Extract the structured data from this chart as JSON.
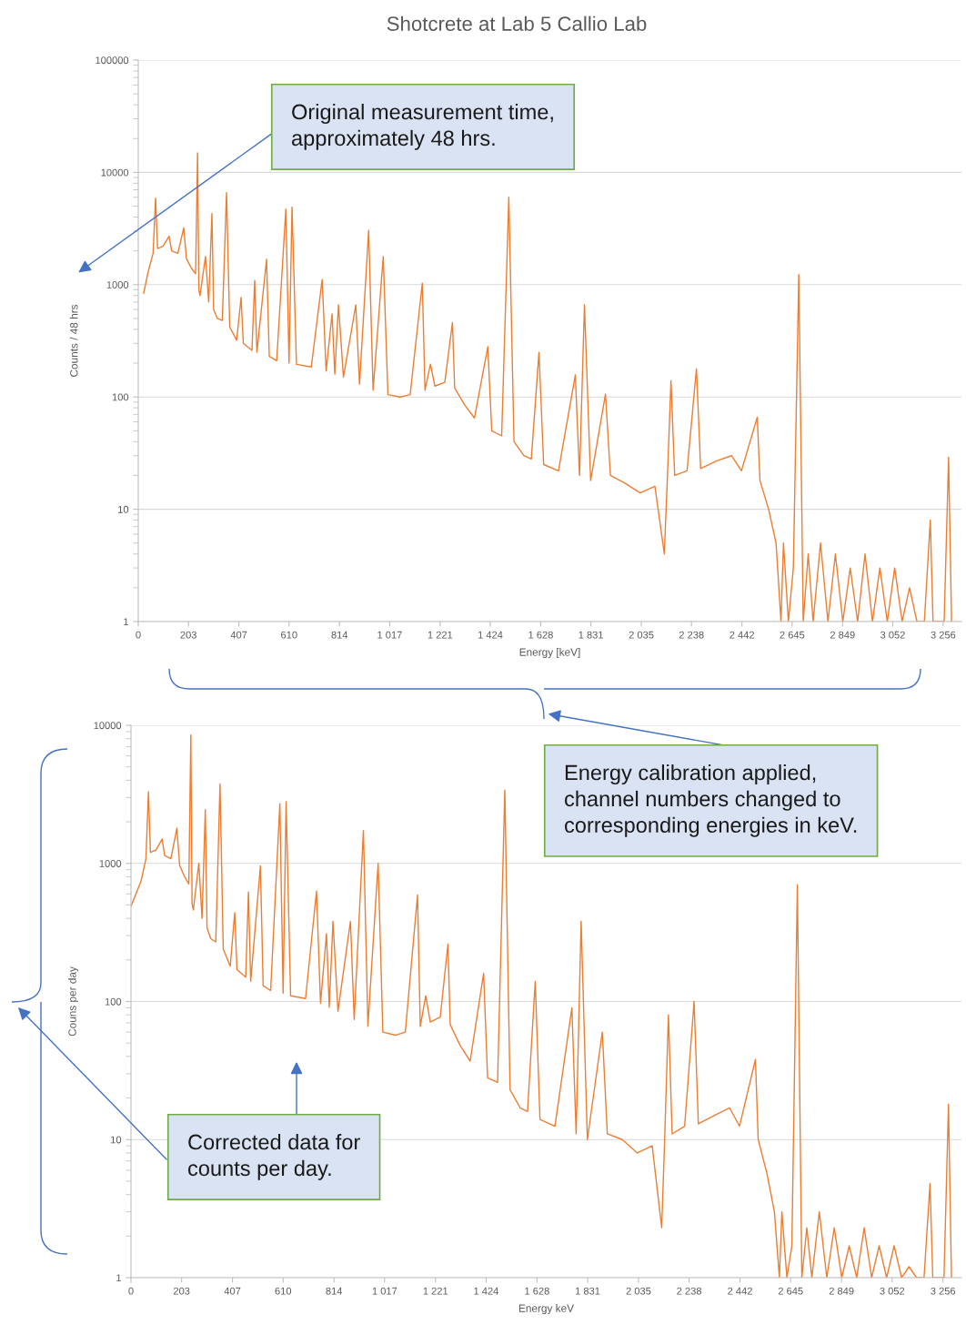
{
  "chart_data": [
    {
      "type": "line",
      "title": "Shotcrete at Lab 5 Callio Lab",
      "xlabel": "Energy [keV]",
      "ylabel": "Counts / 48 hrs",
      "log": "y",
      "grid": "y",
      "xlim": [
        0,
        3330
      ],
      "ylim": [
        1,
        100000
      ],
      "xticks": [
        0,
        203,
        407,
        610,
        814,
        {
          "value": 1017,
          "label": "1 017"
        },
        {
          "value": 1221,
          "label": "1 221"
        },
        {
          "value": 1424,
          "label": "1 424"
        },
        {
          "value": 1628,
          "label": "1 628"
        },
        {
          "value": 1831,
          "label": "1 831"
        },
        {
          "value": 2035,
          "label": "2 035"
        },
        {
          "value": 2238,
          "label": "2 238"
        },
        {
          "value": 2442,
          "label": "2 442"
        },
        {
          "value": 2645,
          "label": "2 645"
        },
        {
          "value": 2849,
          "label": "2 849"
        },
        {
          "value": 3052,
          "label": "3 052"
        },
        {
          "value": 3256,
          "label": "3 256"
        }
      ],
      "yticks": [
        1,
        10,
        100,
        1000,
        10000,
        100000
      ],
      "annotations": [
        "Original measurement time, approximately 48 hrs."
      ],
      "series": [
        {
          "color": "#ed7d31",
          "x": [
            22,
            40,
            60,
            70,
            78,
            100,
            125,
            135,
            160,
            184,
            195,
            215,
            232,
            240,
            245,
            250,
            272,
            285,
            298,
            305,
            320,
            340,
            357,
            370,
            398,
            416,
            425,
            460,
            471,
            480,
            519,
            530,
            560,
            597,
            610,
            622,
            640,
            700,
            744,
            760,
            784,
            795,
            810,
            830,
            880,
            895,
            932,
            950,
            991,
            1010,
            1060,
            1100,
            1149,
            1160,
            1182,
            1200,
            1240,
            1271,
            1280,
            1320,
            1360,
            1414,
            1430,
            1470,
            1499,
            1520,
            1560,
            1590,
            1621,
            1640,
            1700,
            1768,
            1785,
            1805,
            1830,
            1890,
            1910,
            1970,
            2030,
            2090,
            2128,
            2140,
            2155,
            2170,
            2220,
            2258,
            2275,
            2340,
            2400,
            2440,
            2504,
            2515,
            2550,
            2580,
            2600,
            2610,
            2630,
            2650,
            2672,
            2690,
            2710,
            2730,
            2760,
            2790,
            2820,
            2850,
            2880,
            2910,
            2940,
            2970,
            3000,
            3030,
            3060,
            3090,
            3120,
            3150,
            3180,
            3204,
            3215,
            3260,
            3278,
            3290
          ],
          "values": [
            840,
            1300,
            1900,
            5900,
            2100,
            2200,
            2700,
            2000,
            1900,
            3200,
            1700,
            1400,
            1250,
            14900,
            900,
            800,
            1780,
            700,
            4300,
            600,
            500,
            480,
            6600,
            420,
            320,
            770,
            300,
            260,
            1090,
            250,
            1680,
            230,
            210,
            4700,
            200,
            4900,
            195,
            185,
            1110,
            170,
            550,
            160,
            660,
            150,
            660,
            130,
            3040,
            115,
            1780,
            105,
            100,
            105,
            1030,
            115,
            196,
            125,
            135,
            460,
            120,
            85,
            65,
            280,
            50,
            45,
            6000,
            40,
            30,
            28,
            250,
            25,
            22,
            157,
            20,
            660,
            18,
            106,
            20,
            17,
            14,
            16,
            4,
            18,
            140,
            20,
            22,
            178,
            23,
            27,
            30,
            22,
            66,
            18,
            10,
            5,
            1,
            5,
            1,
            3,
            1230,
            1,
            4,
            1,
            5,
            1,
            4,
            1,
            3,
            1,
            4,
            1,
            3,
            1,
            3,
            1,
            2,
            1,
            1,
            8,
            1,
            1,
            29,
            1
          ]
        }
      ]
    },
    {
      "type": "line",
      "xlabel": "Energy keV",
      "ylabel": "Couns per day",
      "log": "y",
      "grid": "y",
      "xlim": [
        0,
        3330
      ],
      "ylim": [
        1,
        10000
      ],
      "xticks": [
        0,
        203,
        407,
        610,
        814,
        {
          "value": 1017,
          "label": "1 017"
        },
        {
          "value": 1221,
          "label": "1 221"
        },
        {
          "value": 1424,
          "label": "1 424"
        },
        {
          "value": 1628,
          "label": "1 628"
        },
        {
          "value": 1831,
          "label": "1 831"
        },
        {
          "value": 2035,
          "label": "2 035"
        },
        {
          "value": 2238,
          "label": "2 238"
        },
        {
          "value": 2442,
          "label": "2 442"
        },
        {
          "value": 2645,
          "label": "2 645"
        },
        {
          "value": 2849,
          "label": "2 849"
        },
        {
          "value": 3052,
          "label": "3 052"
        },
        {
          "value": 3256,
          "label": "3 256"
        }
      ],
      "yticks": [
        1,
        10,
        100,
        1000,
        10000
      ],
      "annotations": [
        "Energy calibration applied, channel numbers changed to corresponding energies in keV.",
        "Corrected data for counts per day."
      ],
      "series": [
        {
          "color": "#ed7d31",
          "x": [
            0,
            40,
            60,
            70,
            78,
            100,
            125,
            135,
            160,
            184,
            195,
            215,
            232,
            240,
            245,
            250,
            272,
            285,
            298,
            305,
            320,
            340,
            357,
            370,
            398,
            416,
            425,
            460,
            471,
            480,
            519,
            530,
            560,
            597,
            610,
            622,
            640,
            700,
            744,
            760,
            784,
            795,
            810,
            830,
            880,
            895,
            932,
            950,
            991,
            1010,
            1060,
            1100,
            1149,
            1160,
            1182,
            1200,
            1240,
            1271,
            1280,
            1320,
            1360,
            1414,
            1430,
            1470,
            1499,
            1520,
            1560,
            1590,
            1621,
            1640,
            1700,
            1768,
            1785,
            1805,
            1830,
            1890,
            1910,
            1970,
            2030,
            2090,
            2128,
            2140,
            2155,
            2170,
            2220,
            2258,
            2275,
            2340,
            2400,
            2440,
            2504,
            2515,
            2550,
            2580,
            2600,
            2610,
            2630,
            2650,
            2672,
            2690,
            2710,
            2730,
            2760,
            2790,
            2820,
            2850,
            2880,
            2910,
            2940,
            2970,
            3000,
            3030,
            3060,
            3090,
            3120,
            3150,
            3180,
            3204,
            3215,
            3260,
            3278,
            3290
          ],
          "values": [
            490,
            740,
            1080,
            3300,
            1200,
            1250,
            1500,
            1140,
            1080,
            1800,
            970,
            800,
            710,
            8500,
            510,
            460,
            1000,
            400,
            2450,
            340,
            285,
            270,
            3760,
            240,
            180,
            440,
            170,
            150,
            620,
            140,
            960,
            130,
            120,
            2700,
            115,
            2800,
            110,
            105,
            630,
            97,
            310,
            91,
            380,
            85,
            380,
            74,
            1730,
            66,
            1000,
            60,
            57,
            60,
            590,
            66,
            110,
            71,
            77,
            260,
            68,
            48,
            37,
            160,
            28,
            26,
            3400,
            23,
            17,
            16,
            140,
            14,
            12.5,
            90,
            11,
            380,
            10,
            60,
            11,
            10,
            8,
            9,
            2.3,
            10,
            80,
            11,
            12.5,
            100,
            13,
            15,
            17,
            12.5,
            38,
            10,
            5.7,
            3,
            1,
            3,
            1,
            1.7,
            700,
            1,
            2.3,
            1,
            3,
            1,
            2.3,
            1,
            1.7,
            1,
            2.3,
            1,
            1.7,
            1,
            1.7,
            1,
            1.2,
            1,
            1,
            4.8,
            1,
            1,
            18,
            1
          ]
        }
      ]
    }
  ]
}
